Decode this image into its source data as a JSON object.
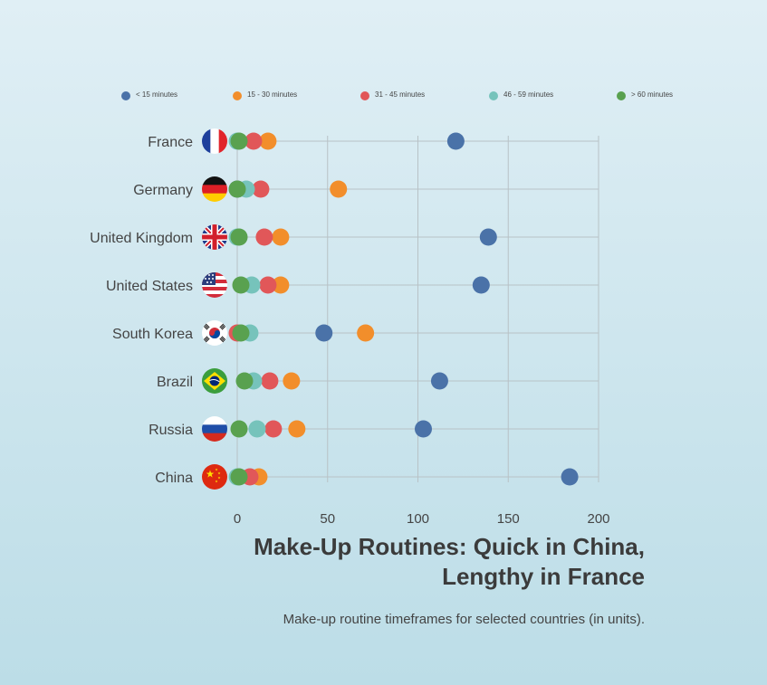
{
  "chart_data": {
    "type": "scatter",
    "title_lines": [
      "Make-Up Routines: Quick in China,",
      "Lengthy in France"
    ],
    "subtitle": "Make-up routine timeframes for selected countries (in units).",
    "xlim": [
      0,
      200
    ],
    "x_ticks": [
      0,
      50,
      100,
      150,
      200
    ],
    "grid": true,
    "legend_position": "top",
    "categories": [
      "France",
      "Germany",
      "United Kingdom",
      "United States",
      "South Korea",
      "Brazil",
      "Russia",
      "China"
    ],
    "series": [
      {
        "name": "< 15 minutes",
        "color": "#4a72a8",
        "values": [
          121,
          0,
          139,
          135,
          48,
          112,
          103,
          184
        ]
      },
      {
        "name": "15 - 30 minutes",
        "color": "#f28e2b",
        "values": [
          17,
          56,
          24,
          24,
          71,
          30,
          33,
          12
        ]
      },
      {
        "name": "31 - 45 minutes",
        "color": "#e15759",
        "values": [
          9,
          13,
          15,
          17,
          0,
          18,
          20,
          7
        ]
      },
      {
        "name": "46 - 59 minutes",
        "color": "#76c3bb",
        "values": [
          0,
          5,
          0,
          8,
          7,
          9,
          11,
          0
        ]
      },
      {
        "name": "> 60 minutes",
        "color": "#59a14f",
        "values": [
          1,
          0,
          1,
          2,
          2,
          4,
          1,
          1
        ]
      }
    ],
    "flags": [
      "france",
      "germany",
      "uk",
      "usa",
      "south-korea",
      "brazil",
      "russia",
      "china"
    ]
  }
}
